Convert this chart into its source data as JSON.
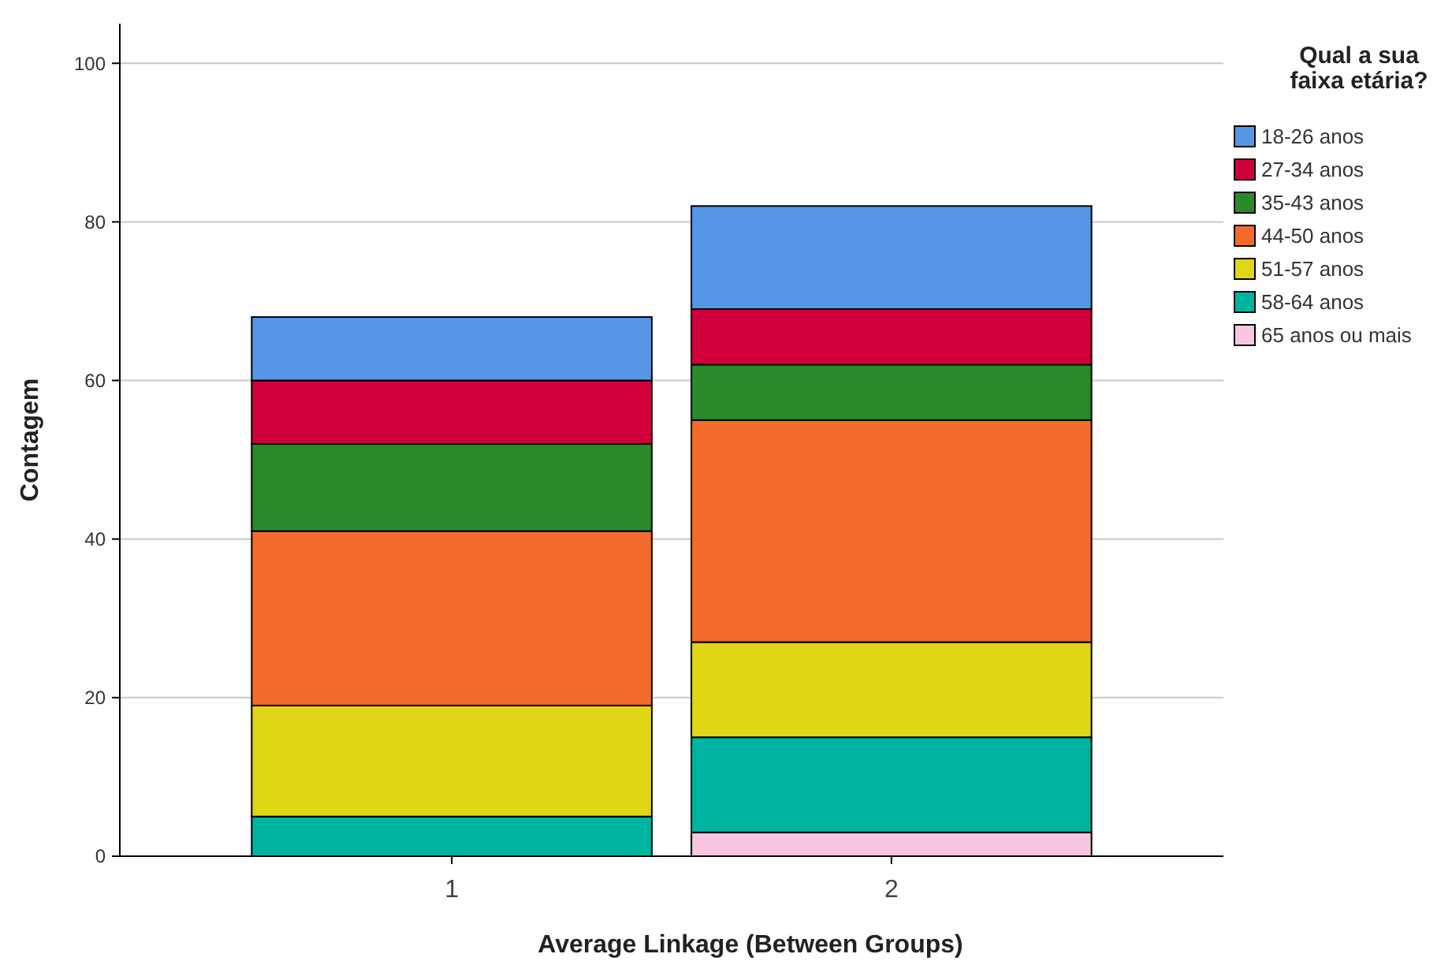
{
  "chart_data": {
    "type": "bar",
    "stacked": true,
    "xlabel": "Average Linkage (Between Groups)",
    "ylabel": "Contagem",
    "legend_title": "Qual a sua faixa etária?",
    "legend": "top right",
    "grid": "y",
    "categories": [
      "1",
      "2"
    ],
    "ylim": [
      0,
      105
    ],
    "yticks": [
      0,
      20,
      40,
      60,
      80,
      100
    ],
    "series": [
      {
        "name": "65 anos ou mais",
        "color": "#f8c6e0",
        "values": [
          0,
          3
        ]
      },
      {
        "name": "58-64 anos",
        "color": "#00b3a1",
        "values": [
          5,
          12
        ]
      },
      {
        "name": "51-57 anos",
        "color": "#e0d615",
        "values": [
          14,
          12
        ]
      },
      {
        "name": "44-50 anos",
        "color": "#f26b2b",
        "values": [
          22,
          28
        ]
      },
      {
        "name": "35-43 anos",
        "color": "#2a8a2a",
        "values": [
          11,
          7
        ]
      },
      {
        "name": "27-34 anos",
        "color": "#d1003c",
        "values": [
          8,
          7
        ]
      },
      {
        "name": "18-26 anos",
        "color": "#5596e6",
        "values": [
          8,
          13
        ]
      }
    ]
  }
}
